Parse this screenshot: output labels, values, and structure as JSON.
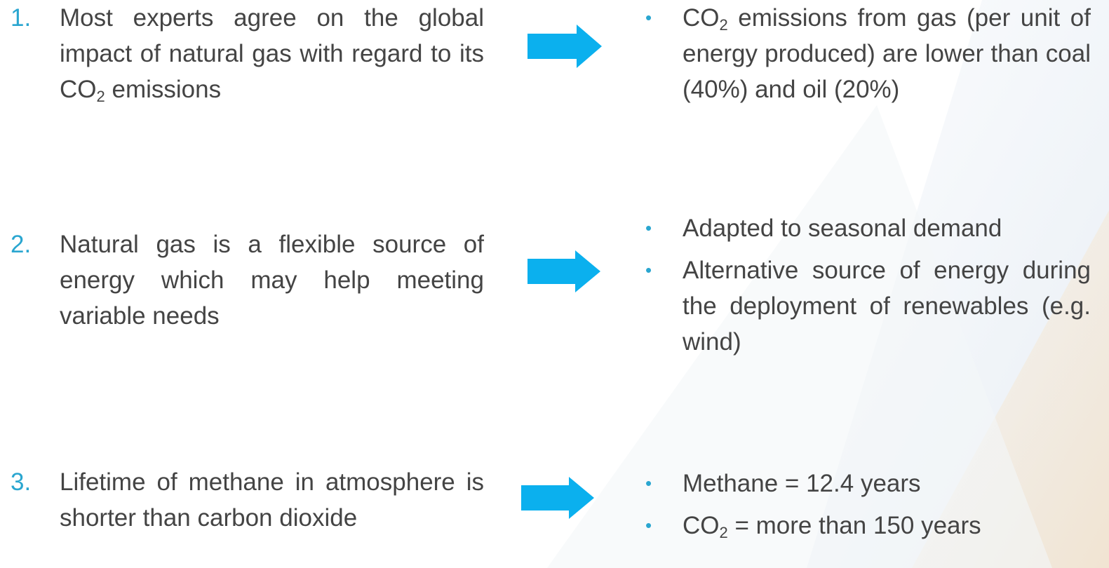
{
  "items": [
    {
      "number": "1.",
      "text": [
        {
          "t": "Most experts agree on the global impact of natural gas with regard to its CO"
        },
        {
          "t": "2",
          "sub": true
        },
        {
          "t": " emissions"
        }
      ],
      "bullets": [
        [
          {
            "t": "CO"
          },
          {
            "t": "2",
            "sub": true
          },
          {
            "t": " emissions from gas (per unit of energy produced) are lower than coal (40%) and oil (20%)"
          }
        ]
      ]
    },
    {
      "number": "2.",
      "text": [
        {
          "t": "Natural gas is a flexible source of energy which may help meeting  variable needs"
        }
      ],
      "bullets": [
        [
          {
            "t": "Adapted to seasonal demand"
          }
        ],
        [
          {
            "t": "Alternative source of energy during the deployment of renewables (e.g. wind)"
          }
        ]
      ]
    },
    {
      "number": "3.",
      "text": [
        {
          "t": "Lifetime of methane in atmosphere is shorter than carbon dioxide"
        }
      ],
      "bullets": [
        [
          {
            "t": "Methane = 12.4 years"
          }
        ],
        [
          {
            "t": "CO"
          },
          {
            "t": "2",
            "sub": true
          },
          {
            "t": " = more than 150 years"
          }
        ]
      ]
    }
  ]
}
